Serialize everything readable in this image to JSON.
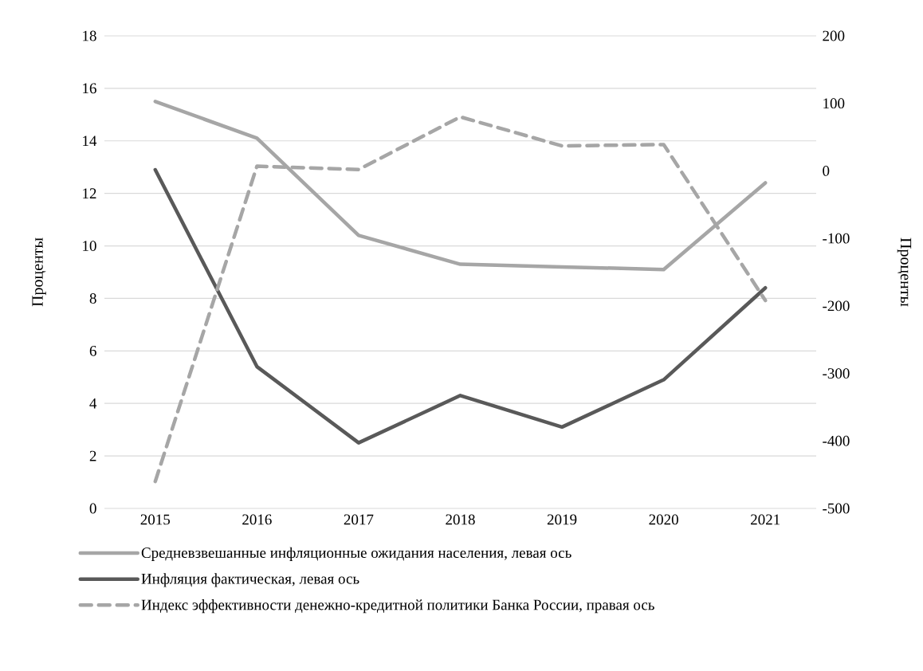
{
  "chart_data": {
    "type": "line",
    "categories": [
      "2015",
      "2016",
      "2017",
      "2018",
      "2019",
      "2020",
      "2021"
    ],
    "series": [
      {
        "name": "Средневзвешанные инфляционные ожидания населения, левая ось",
        "color": "#a6a6a6",
        "values": [
          15.5,
          14.1,
          10.4,
          9.3,
          9.2,
          9.1,
          12.4
        ]
      },
      {
        "name": "Инфляция фактическая, левая ось",
        "color": "#595959",
        "values": [
          12.9,
          5.4,
          2.5,
          4.3,
          3.1,
          4.9,
          8.4
        ]
      },
      {
        "name": "Индекс эффективности денежно-кредитной политики Банка России, правая ось",
        "color": "#a6a6a6",
        "axis": "y2",
        "line_style": "dashed",
        "values": [
          -460,
          7,
          2,
          80,
          37,
          39,
          -192
        ]
      }
    ],
    "ylabel": "Проценты",
    "y2label": "Проценты",
    "ylim": [
      0,
      18
    ],
    "yticks": [
      0,
      2,
      4,
      6,
      8,
      10,
      12,
      14,
      16,
      18
    ],
    "y2lim": [
      -500,
      200
    ],
    "y2ticks": [
      -500,
      -400,
      -300,
      -200,
      -100,
      0,
      100,
      200
    ],
    "grid": "y",
    "legend": "bottom"
  }
}
